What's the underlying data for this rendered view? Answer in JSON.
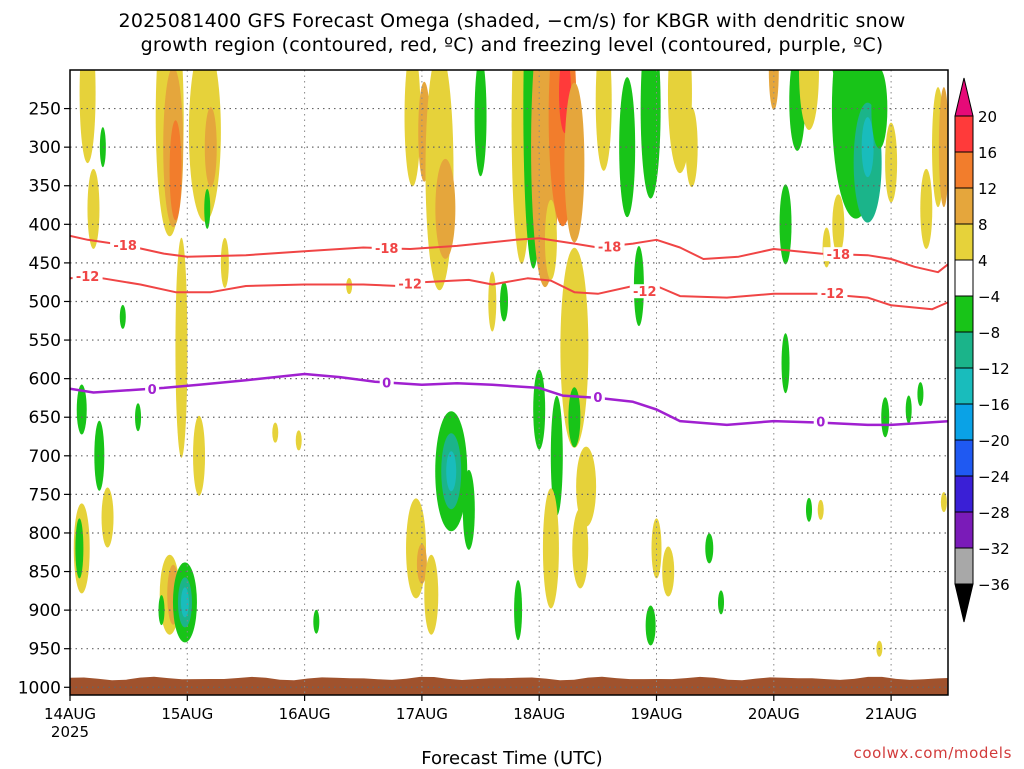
{
  "title_line1": "2025081400 GFS Forecast Omega (shaded, −cm/s) for KBGR with dendritic snow",
  "title_line2": "growth region (contoured, red, ºC) and freezing level (contoured, purple, ºC)",
  "xlabel": "Forecast Time (UTC)",
  "credit": "coolwx.com/models",
  "chart_data": {
    "type": "heatmap",
    "y_axis": {
      "ticks": [
        250,
        300,
        350,
        400,
        450,
        500,
        550,
        600,
        650,
        700,
        750,
        800,
        850,
        900,
        950,
        1000
      ],
      "range": [
        200,
        1010
      ]
    },
    "x_axis": {
      "ticks": [
        "14AUG",
        "15AUG",
        "16AUG",
        "17AUG",
        "18AUG",
        "19AUG",
        "20AUG",
        "21AUG"
      ],
      "year_label": "2025",
      "range_days": [
        0,
        7.5
      ]
    },
    "colorbar": {
      "labels": [
        "20",
        "16",
        "12",
        "8",
        "4",
        "−4",
        "−8",
        "−12",
        "−16",
        "−20",
        "−24",
        "−28",
        "−32",
        "−36"
      ],
      "colors": [
        "#ff3a3a",
        "#f27d2c",
        "#e5a63c",
        "#e6d23a",
        "#ffffff",
        "#18c418",
        "#1bb48a",
        "#19bcbc",
        "#0aa2e6",
        "#1f59f2",
        "#3a1fd6",
        "#7a1bb8",
        "#a8a8a8"
      ],
      "top_arrow_color": "#e60a78",
      "bottom_arrow_color": "#000000"
    },
    "contours": {
      "dgz_red": [
        {
          "label": "-18",
          "color": "#f04545",
          "points": [
            [
              0,
              415
            ],
            [
              0.15,
              420
            ],
            [
              0.5,
              428
            ],
            [
              0.8,
              438
            ],
            [
              1.0,
              442
            ],
            [
              1.5,
              440
            ],
            [
              2.0,
              435
            ],
            [
              2.5,
              430
            ],
            [
              2.9,
              432
            ],
            [
              3.3,
              428
            ],
            [
              3.8,
              420
            ],
            [
              4.0,
              418
            ],
            [
              4.3,
              425
            ],
            [
              4.5,
              430
            ],
            [
              4.8,
              425
            ],
            [
              5.0,
              420
            ],
            [
              5.2,
              430
            ],
            [
              5.4,
              445
            ],
            [
              5.7,
              442
            ],
            [
              6.0,
              432
            ],
            [
              6.4,
              438
            ],
            [
              6.8,
              440
            ],
            [
              7.0,
              445
            ],
            [
              7.2,
              455
            ],
            [
              7.4,
              462
            ],
            [
              7.5,
              450
            ]
          ],
          "label_at": [
            [
              0.47,
              428
            ],
            [
              2.7,
              432
            ],
            [
              4.6,
              430
            ],
            [
              6.55,
              440
            ]
          ]
        },
        {
          "label": "-12",
          "color": "#f04545",
          "points": [
            [
              0,
              470
            ],
            [
              0.2,
              468
            ],
            [
              0.6,
              478
            ],
            [
              0.9,
              488
            ],
            [
              1.2,
              488
            ],
            [
              1.5,
              480
            ],
            [
              2.0,
              478
            ],
            [
              2.5,
              478
            ],
            [
              2.8,
              480
            ],
            [
              3.0,
              475
            ],
            [
              3.4,
              472
            ],
            [
              3.6,
              478
            ],
            [
              3.9,
              470
            ],
            [
              4.1,
              473
            ],
            [
              4.3,
              488
            ],
            [
              4.5,
              490
            ],
            [
              4.8,
              480
            ],
            [
              5.0,
              480
            ],
            [
              5.2,
              493
            ],
            [
              5.6,
              495
            ],
            [
              6.0,
              490
            ],
            [
              6.4,
              490
            ],
            [
              6.8,
              495
            ],
            [
              7.0,
              505
            ],
            [
              7.35,
              510
            ],
            [
              7.5,
              500
            ]
          ],
          "label_at": [
            [
              0.15,
              468
            ],
            [
              2.9,
              478
            ],
            [
              4.9,
              488
            ],
            [
              6.5,
              490
            ]
          ]
        }
      ],
      "freezing_purple": [
        {
          "label": "0",
          "color": "#a020d0",
          "points": [
            [
              0,
              613
            ],
            [
              0.2,
              618
            ],
            [
              0.5,
              615
            ],
            [
              0.8,
              612
            ],
            [
              1.1,
              608
            ],
            [
              1.5,
              602
            ],
            [
              2.0,
              594
            ],
            [
              2.3,
              598
            ],
            [
              2.6,
              604
            ],
            [
              3.0,
              608
            ],
            [
              3.3,
              606
            ],
            [
              3.6,
              608
            ],
            [
              4.0,
              612
            ],
            [
              4.2,
              622
            ],
            [
              4.5,
              625
            ],
            [
              4.8,
              630
            ],
            [
              5.0,
              640
            ],
            [
              5.2,
              655
            ],
            [
              5.6,
              660
            ],
            [
              6.0,
              655
            ],
            [
              6.4,
              657
            ],
            [
              6.8,
              660
            ],
            [
              7.0,
              660
            ],
            [
              7.5,
              655
            ]
          ],
          "label_at": [
            [
              0.7,
              615
            ],
            [
              2.7,
              606
            ],
            [
              4.5,
              625
            ],
            [
              6.4,
              657
            ]
          ]
        }
      ]
    }
  }
}
